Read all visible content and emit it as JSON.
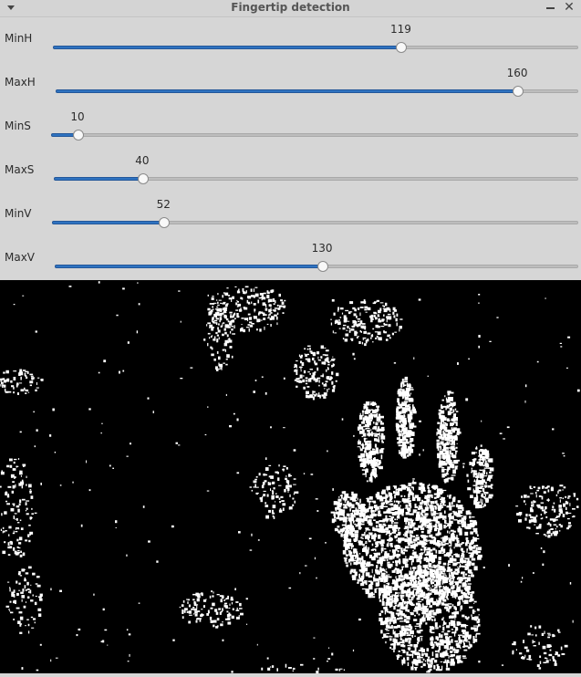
{
  "window": {
    "title": "Fingertip detection",
    "menu_icon": "chevron-down-icon",
    "minimize_icon": "minimize-icon",
    "close_icon": "close-icon",
    "close_glyph": "✕"
  },
  "trackbars": [
    {
      "label": "MinH",
      "value": "119",
      "fraction": 0.6623
    },
    {
      "label": "MaxH",
      "value": "160",
      "fraction": 0.8832
    },
    {
      "label": "MinS",
      "value": "10",
      "fraction": 0.0503
    },
    {
      "label": "MaxS",
      "value": "40",
      "fraction": 0.1684
    },
    {
      "label": "MinV",
      "value": "52",
      "fraction": 0.212
    },
    {
      "label": "MaxV",
      "value": "130",
      "fraction": 0.5105
    }
  ],
  "image": {
    "description_name": "binary-threshold-mask",
    "background": "#000000",
    "foreground": "#ffffff"
  },
  "colors": {
    "accent": "#2f73c0",
    "panel": "#d6d6d6"
  }
}
